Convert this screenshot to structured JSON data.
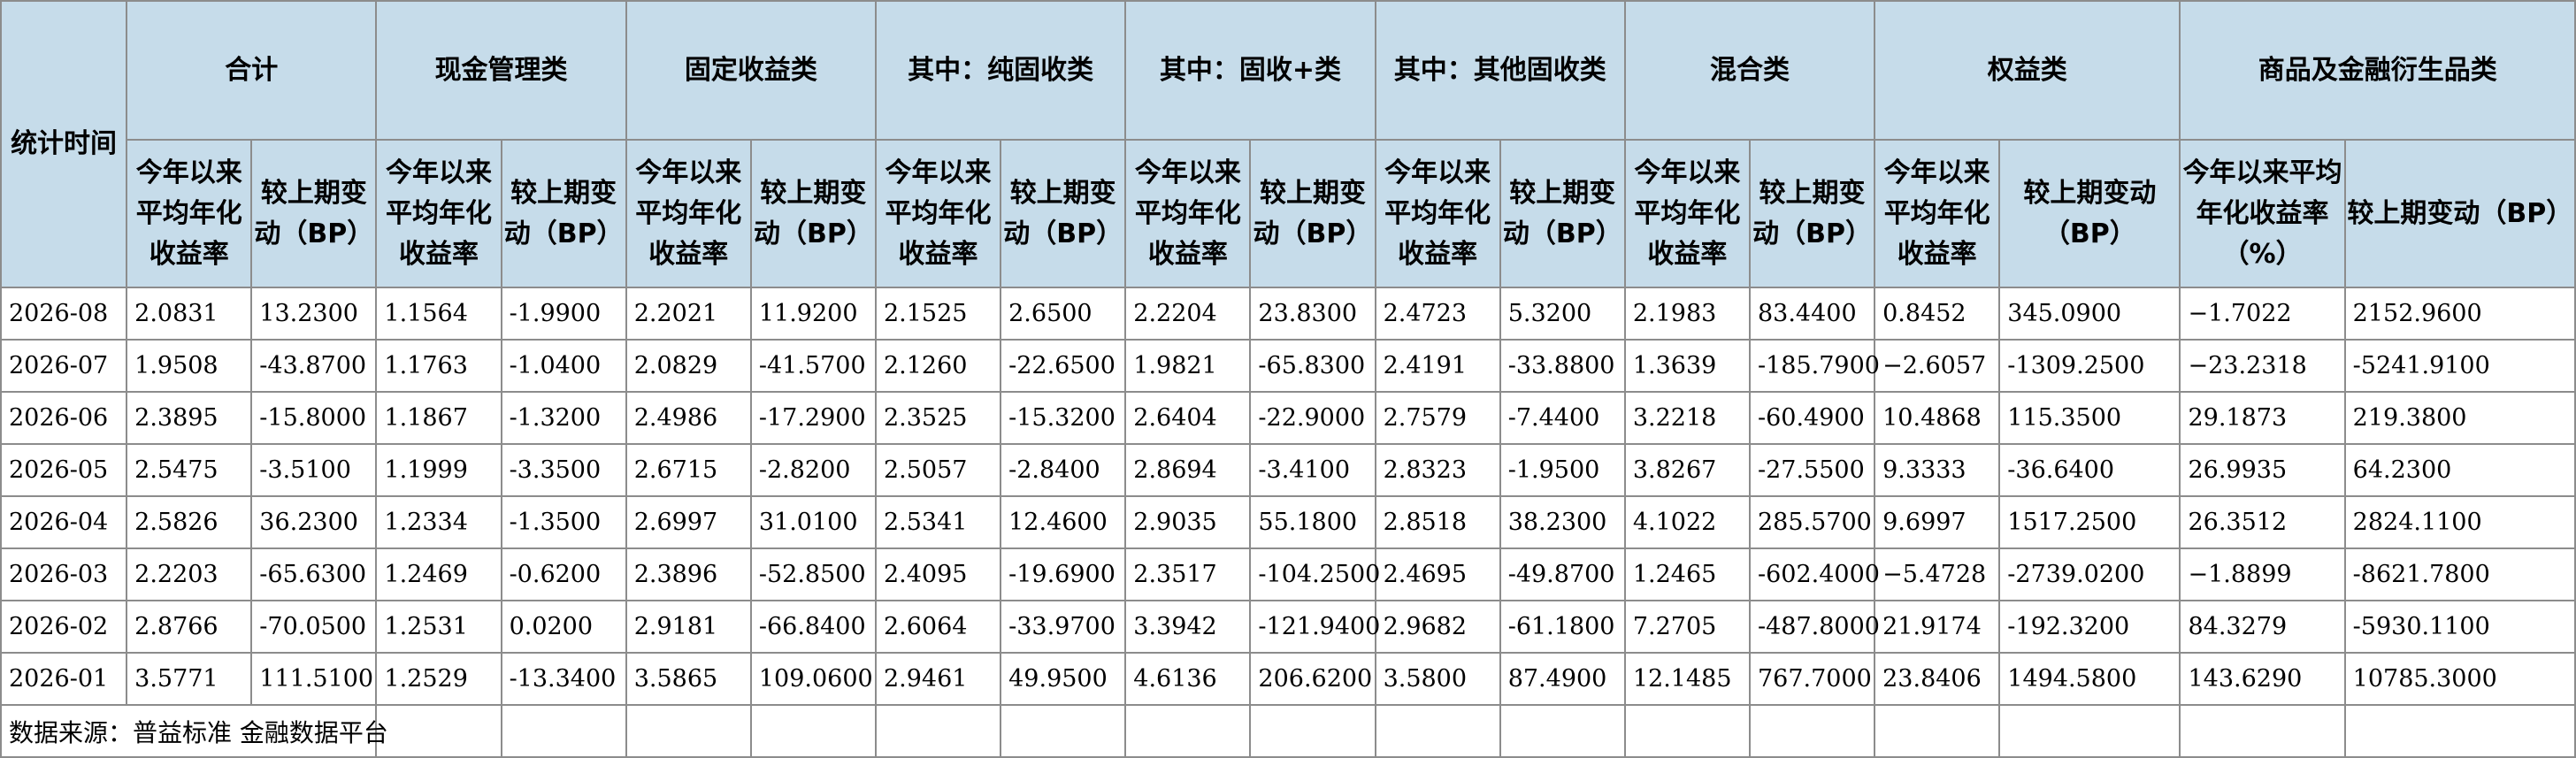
{
  "header": {
    "stat_time": "统计时间",
    "groups": [
      "合计",
      "现金管理类",
      "固定收益类",
      "其中：纯固收类",
      "其中：固收+类",
      "其中：其他固收类",
      "混合类",
      "权益类",
      "商品及金融衍生品类"
    ],
    "sub": {
      "rate": "今年以来平均年化收益率",
      "change": "较上期变动（BP）",
      "rate_pct": "今年以来平均年化收益率（%）"
    }
  },
  "rows": [
    {
      "date": "2026-08",
      "values": [
        "2.0831",
        "13.2300",
        "1.1564",
        "-1.9900",
        "2.2021",
        "11.9200",
        "2.1525",
        "2.6500",
        "2.2204",
        "23.8300",
        "2.4723",
        "5.3200",
        "2.1983",
        "83.4400",
        "0.8452",
        "345.0900",
        "−1.7022",
        "2152.9600"
      ]
    },
    {
      "date": "2026-07",
      "values": [
        "1.9508",
        "-43.8700",
        "1.1763",
        "-1.0400",
        "2.0829",
        "-41.5700",
        "2.1260",
        "-22.6500",
        "1.9821",
        "-65.8300",
        "2.4191",
        "-33.8800",
        "1.3639",
        "-185.7900",
        "−2.6057",
        "-1309.2500",
        "−23.2318",
        "-5241.9100"
      ]
    },
    {
      "date": "2026-06",
      "values": [
        "2.3895",
        "-15.8000",
        "1.1867",
        "-1.3200",
        "2.4986",
        "-17.2900",
        "2.3525",
        "-15.3200",
        "2.6404",
        "-22.9000",
        "2.7579",
        "-7.4400",
        "3.2218",
        "-60.4900",
        "10.4868",
        "115.3500",
        "29.1873",
        "219.3800"
      ]
    },
    {
      "date": "2026-05",
      "values": [
        "2.5475",
        "-3.5100",
        "1.1999",
        "-3.3500",
        "2.6715",
        "-2.8200",
        "2.5057",
        "-2.8400",
        "2.8694",
        "-3.4100",
        "2.8323",
        "-1.9500",
        "3.8267",
        "-27.5500",
        "9.3333",
        "-36.6400",
        "26.9935",
        "64.2300"
      ]
    },
    {
      "date": "2026-04",
      "values": [
        "2.5826",
        "36.2300",
        "1.2334",
        "-1.3500",
        "2.6997",
        "31.0100",
        "2.5341",
        "12.4600",
        "2.9035",
        "55.1800",
        "2.8518",
        "38.2300",
        "4.1022",
        "285.5700",
        "9.6997",
        "1517.2500",
        "26.3512",
        "2824.1100"
      ]
    },
    {
      "date": "2026-03",
      "values": [
        "2.2203",
        "-65.6300",
        "1.2469",
        "-0.6200",
        "2.3896",
        "-52.8500",
        "2.4095",
        "-19.6900",
        "2.3517",
        "-104.2500",
        "2.4695",
        "-49.8700",
        "1.2465",
        "-602.4000",
        "−5.4728",
        "-2739.0200",
        "−1.8899",
        "-8621.7800"
      ]
    },
    {
      "date": "2026-02",
      "values": [
        "2.8766",
        "-70.0500",
        "1.2531",
        "0.0200",
        "2.9181",
        "-66.8400",
        "2.6064",
        "-33.9700",
        "3.3942",
        "-121.9400",
        "2.9682",
        "-61.1800",
        "7.2705",
        "-487.8000",
        "21.9174",
        "-192.3200",
        "84.3279",
        "-5930.1100"
      ]
    },
    {
      "date": "2026-01",
      "values": [
        "3.5771",
        "111.5100",
        "1.2529",
        "-13.3400",
        "3.5865",
        "109.0600",
        "2.9461",
        "49.9500",
        "4.6136",
        "206.6200",
        "3.5800",
        "87.4900",
        "12.1485",
        "767.7000",
        "23.8406",
        "1494.5800",
        "143.6290",
        "10785.3000"
      ]
    }
  ],
  "source": "数据来源：普益标准 金融数据平台"
}
